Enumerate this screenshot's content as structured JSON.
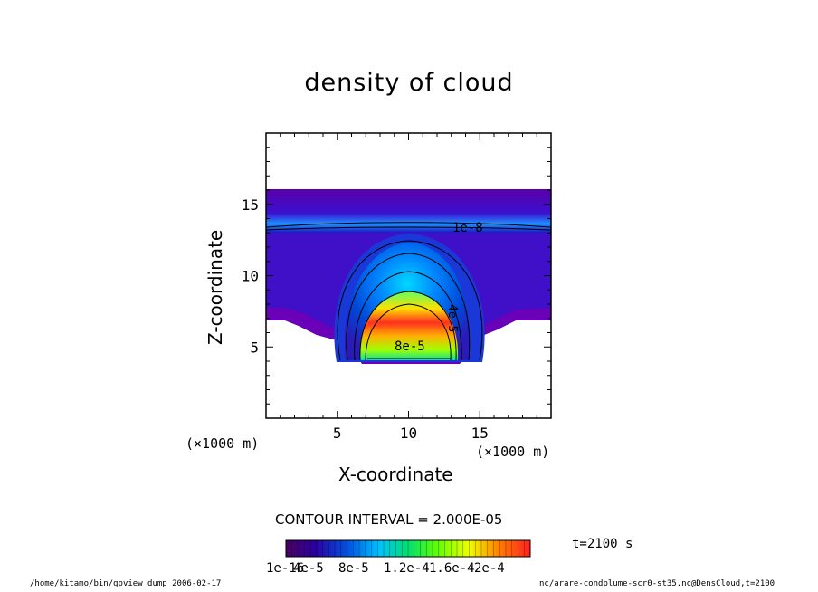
{
  "chart_data": {
    "type": "heatmap",
    "title": "density of cloud",
    "xlabel": "X-coordinate",
    "ylabel": "Z-coordinate",
    "x_unit": "(×1000 m)",
    "y_unit": "(×1000 m)",
    "xlim": [
      0,
      20
    ],
    "ylim": [
      0,
      20
    ],
    "x_ticks": [
      "5",
      "10",
      "15"
    ],
    "y_ticks": [
      "5",
      "10",
      "15"
    ],
    "x_tick_values": [
      5,
      10,
      15
    ],
    "y_tick_values": [
      5,
      10,
      15
    ],
    "contour_interval_text": "CONTOUR INTERVAL = 2.000E-05",
    "contour_labels": [
      "1e-8",
      "4e-5",
      "8e-5"
    ],
    "colorbar_ticks": [
      "1e-16",
      "4e-5",
      "8e-5",
      "1.2e-4",
      "1.6e-4",
      "2e-4"
    ],
    "colorbar_range": [
      1e-16,
      0.0002
    ],
    "fields": {
      "layer_z_range": [
        13,
        16
      ],
      "outer_boundary_z": 7,
      "cloud_center_x": 10,
      "cloud_core_z": 7.5,
      "cloud_max": 0.0002
    }
  },
  "time_label": "t=2100 s",
  "footer_left": "/home/kitamo/bin/gpview_dump  2006-02-17",
  "footer_right": "nc/arare-condplume-scr0-st35.nc@DensCloud,t=2100"
}
